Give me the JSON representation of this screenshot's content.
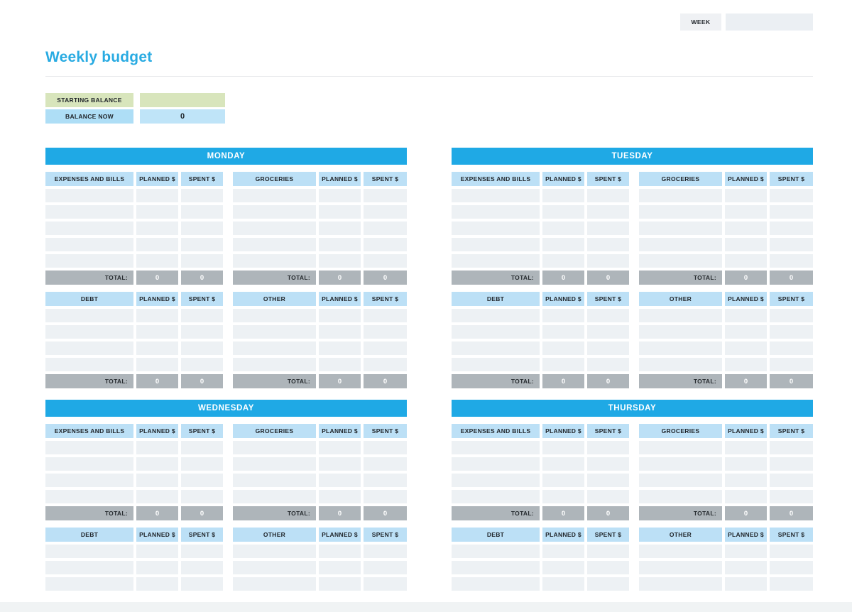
{
  "header": {
    "week_label": "WEEK",
    "week_value": "",
    "title": "Weekly budget"
  },
  "balance": {
    "starting_label": "STARTING BALANCE",
    "starting_value": "",
    "now_label": "BALANCE NOW",
    "now_value": "0"
  },
  "table_labels": {
    "planned": "PLANNED $",
    "spent": "SPENT $",
    "total": "TOTAL:"
  },
  "days": [
    {
      "title": "MONDAY",
      "blocks": [
        {
          "categories": [
            "EXPENSES AND BILLS",
            "GROCERIES"
          ],
          "rows": 5,
          "show_total": true,
          "totals": {
            "left": {
              "planned": "0",
              "spent": "0"
            },
            "right": {
              "planned": "0",
              "spent": "0"
            }
          }
        },
        {
          "categories": [
            "DEBT",
            "OTHER"
          ],
          "rows": 4,
          "show_total": true,
          "totals": {
            "left": {
              "planned": "0",
              "spent": "0"
            },
            "right": {
              "planned": "0",
              "spent": "0"
            }
          }
        }
      ]
    },
    {
      "title": "TUESDAY",
      "blocks": [
        {
          "categories": [
            "EXPENSES AND BILLS",
            "GROCERIES"
          ],
          "rows": 5,
          "show_total": true,
          "totals": {
            "left": {
              "planned": "0",
              "spent": "0"
            },
            "right": {
              "planned": "0",
              "spent": "0"
            }
          }
        },
        {
          "categories": [
            "DEBT",
            "OTHER"
          ],
          "rows": 4,
          "show_total": true,
          "totals": {
            "left": {
              "planned": "0",
              "spent": "0"
            },
            "right": {
              "planned": "0",
              "spent": "0"
            }
          }
        }
      ]
    },
    {
      "title": "WEDNESDAY",
      "blocks": [
        {
          "categories": [
            "EXPENSES AND BILLS",
            "GROCERIES"
          ],
          "rows": 4,
          "show_total": true,
          "totals": {
            "left": {
              "planned": "0",
              "spent": "0"
            },
            "right": {
              "planned": "0",
              "spent": "0"
            }
          }
        },
        {
          "categories": [
            "DEBT",
            "OTHER"
          ],
          "rows": 3,
          "show_total": false
        }
      ]
    },
    {
      "title": "THURSDAY",
      "blocks": [
        {
          "categories": [
            "EXPENSES AND BILLS",
            "GROCERIES"
          ],
          "rows": 4,
          "show_total": true,
          "totals": {
            "left": {
              "planned": "0",
              "spent": "0"
            },
            "right": {
              "planned": "0",
              "spent": "0"
            }
          }
        },
        {
          "categories": [
            "DEBT",
            "OTHER"
          ],
          "rows": 3,
          "show_total": false
        }
      ]
    }
  ],
  "colors": {
    "accent_blue": "#1FA9E5",
    "title_blue": "#29ABE2",
    "header_light_blue": "#BCE0F6",
    "cell_gray": "#EDF1F4",
    "total_gray": "#AEB5BA",
    "balance_green": "#D8E5BC",
    "balance_blue": "#AEDEF6",
    "balance_blue_value": "#BFE4F8",
    "week_box_gray": "#EFF1F4",
    "week_value_gray": "#EBEFF3"
  }
}
